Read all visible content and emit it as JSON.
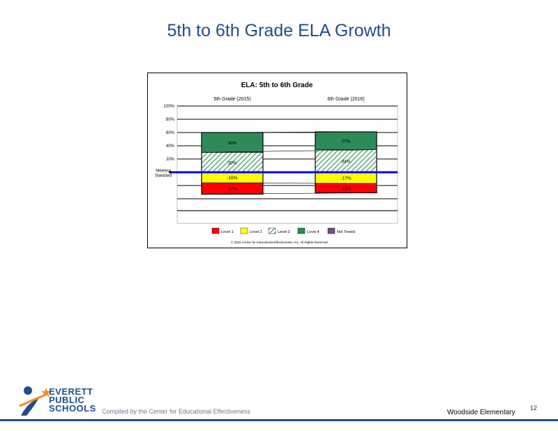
{
  "slide": {
    "title": "5th to 6th Grade ELA Growth",
    "footer_compiled": "Compiled by the Center for Educational Effectiveness",
    "footer_school": "Woodside Elementary",
    "page_number": "12",
    "logo": {
      "line1": "EVERETT",
      "line2": "PUBLIC",
      "line3": "SCHOOLS"
    }
  },
  "colors": {
    "title": "#1f4e8c",
    "level1": "#ff0000",
    "level2": "#ffff00",
    "level3": "#5fa87a",
    "level4": "#2e8b57",
    "not_tested": "#6b4f8a",
    "meeting_line": "#0000ff"
  },
  "chart_data": {
    "type": "bar",
    "title": "ELA: 5th to 6th Grade",
    "categories": [
      "5th Grade (2015)",
      "6th Grade (2016)"
    ],
    "yticks": [
      "100%",
      "80%",
      "60%",
      "40%",
      "20%"
    ],
    "ylim": [
      -30,
      100
    ],
    "meeting_standard_label": "Meeting Standard",
    "series": [
      {
        "name": "Level 1",
        "values": [
          -17,
          -14
        ],
        "labels": [
          "-17%",
          "-14%"
        ]
      },
      {
        "name": "Level 2",
        "values": [
          -16,
          -17
        ],
        "labels": [
          "-16%",
          "-17%"
        ]
      },
      {
        "name": "Level 3",
        "values": [
          30,
          34
        ],
        "labels": [
          "30%",
          "34%"
        ]
      },
      {
        "name": "Level 4",
        "values": [
          30,
          27
        ],
        "labels": [
          "30%",
          "27%"
        ]
      },
      {
        "name": "Not Tested",
        "values": [
          0,
          0
        ],
        "labels": [
          "",
          ""
        ]
      }
    ],
    "legend": [
      "Level 1",
      "Level 2",
      "Level 3",
      "Level 4",
      "Not Tested"
    ],
    "copyright": "© 2016 Center for Educational Effectiveness, Inc. All Rights Reserved.",
    "grid": true,
    "legend_position": "bottom"
  }
}
